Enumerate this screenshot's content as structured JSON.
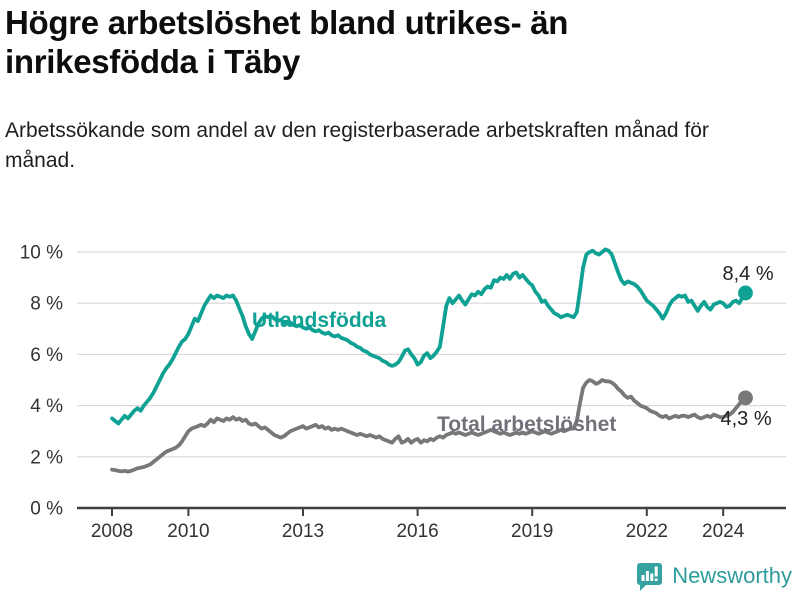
{
  "header": {
    "title": "Högre arbetslöshet bland utrikes- än inrikesfödda i Täby",
    "subtitle": "Arbetssökande som andel av den registerbaserade arbetskraften månad för månad."
  },
  "footer": {
    "brand": "Newsworthy",
    "brand_color": "#2f9c9c",
    "logo_icon": "bar-chart-speech-bubble-icon",
    "logo_color": "#35a1a1"
  },
  "chart_data": {
    "type": "line",
    "title": "Högre arbetslöshet bland utrikes- än inrikesfödda i Täby",
    "subtitle": "Arbetssökande som andel av den registerbaserade arbetskraften månad för månad.",
    "x_start_year": 2008,
    "x_interval": "monthly",
    "x_end": "2024-08",
    "x_tick_years": [
      2008,
      2010,
      2013,
      2016,
      2019,
      2022,
      2024
    ],
    "y_ticks": [
      0,
      2,
      4,
      6,
      8,
      10
    ],
    "y_tick_suffix": " %",
    "ylim": [
      0,
      10.5
    ],
    "grid": "horizontal",
    "legend_position": "inline-labels",
    "axis_color": "#3f3f3f",
    "grid_color": "#d9d9d9",
    "tick_label_color": "#333333",
    "end_label_color": "#222222",
    "series": [
      {
        "name": "Utlandsfödda",
        "color": "#0fa294",
        "label_color": "#0fa294",
        "end_label": "8,4 %",
        "end_value": 8.4,
        "values": [
          3.5,
          3.4,
          3.3,
          3.45,
          3.6,
          3.5,
          3.65,
          3.8,
          3.9,
          3.8,
          4.0,
          4.15,
          4.3,
          4.5,
          4.75,
          5.0,
          5.25,
          5.45,
          5.6,
          5.8,
          6.05,
          6.3,
          6.5,
          6.6,
          6.8,
          7.1,
          7.4,
          7.3,
          7.6,
          7.9,
          8.1,
          8.3,
          8.2,
          8.3,
          8.25,
          8.2,
          8.3,
          8.25,
          8.3,
          8.1,
          7.8,
          7.5,
          7.1,
          6.8,
          6.6,
          6.9,
          7.2,
          7.4,
          7.5,
          7.45,
          7.5,
          7.4,
          7.3,
          7.35,
          7.25,
          7.2,
          7.25,
          7.15,
          7.1,
          7.15,
          7.05,
          7.0,
          7.05,
          6.95,
          6.9,
          6.95,
          6.85,
          6.8,
          6.85,
          6.75,
          6.7,
          6.75,
          6.65,
          6.6,
          6.55,
          6.45,
          6.4,
          6.3,
          6.25,
          6.15,
          6.1,
          6.0,
          5.95,
          5.9,
          5.85,
          5.75,
          5.7,
          5.6,
          5.55,
          5.6,
          5.7,
          5.9,
          6.15,
          6.2,
          6.0,
          5.85,
          5.6,
          5.7,
          5.95,
          6.05,
          5.85,
          5.95,
          6.1,
          6.3,
          7.1,
          7.9,
          8.2,
          8.0,
          8.15,
          8.3,
          8.1,
          7.95,
          8.15,
          8.35,
          8.3,
          8.45,
          8.35,
          8.55,
          8.65,
          8.6,
          8.9,
          8.85,
          9.0,
          8.95,
          9.1,
          8.95,
          9.15,
          9.2,
          9.0,
          9.1,
          8.95,
          8.8,
          8.7,
          8.45,
          8.3,
          8.05,
          8.1,
          7.9,
          7.75,
          7.6,
          7.55,
          7.45,
          7.5,
          7.55,
          7.5,
          7.45,
          7.65,
          8.5,
          9.4,
          9.9,
          10.0,
          10.05,
          9.95,
          9.9,
          10.0,
          10.1,
          10.05,
          9.9,
          9.55,
          9.2,
          8.9,
          8.75,
          8.85,
          8.8,
          8.75,
          8.65,
          8.5,
          8.3,
          8.1,
          8.0,
          7.9,
          7.75,
          7.6,
          7.4,
          7.6,
          7.9,
          8.1,
          8.2,
          8.3,
          8.25,
          8.3,
          8.05,
          8.1,
          7.9,
          7.7,
          7.9,
          8.05,
          7.85,
          7.75,
          7.95,
          8.0,
          8.05,
          8.0,
          7.85,
          7.9,
          8.05,
          8.1,
          8.0,
          8.2,
          8.4
        ]
      },
      {
        "name": "Total arbetslöshet",
        "color": "#787878",
        "label_color": "#71717a",
        "end_label": "4,3 %",
        "end_value": 4.3,
        "values": [
          1.5,
          1.48,
          1.45,
          1.43,
          1.45,
          1.42,
          1.45,
          1.5,
          1.55,
          1.58,
          1.6,
          1.65,
          1.7,
          1.8,
          1.9,
          2.0,
          2.1,
          2.2,
          2.25,
          2.3,
          2.35,
          2.45,
          2.6,
          2.8,
          3.0,
          3.1,
          3.15,
          3.2,
          3.25,
          3.2,
          3.3,
          3.45,
          3.35,
          3.5,
          3.45,
          3.4,
          3.5,
          3.45,
          3.55,
          3.45,
          3.5,
          3.4,
          3.45,
          3.3,
          3.25,
          3.3,
          3.2,
          3.1,
          3.15,
          3.05,
          2.95,
          2.85,
          2.8,
          2.75,
          2.8,
          2.9,
          3.0,
          3.05,
          3.1,
          3.15,
          3.2,
          3.1,
          3.15,
          3.2,
          3.25,
          3.15,
          3.2,
          3.1,
          3.15,
          3.05,
          3.1,
          3.05,
          3.1,
          3.05,
          3.0,
          2.95,
          2.9,
          2.85,
          2.9,
          2.85,
          2.8,
          2.85,
          2.8,
          2.75,
          2.8,
          2.7,
          2.65,
          2.6,
          2.55,
          2.7,
          2.8,
          2.55,
          2.6,
          2.7,
          2.55,
          2.65,
          2.7,
          2.55,
          2.65,
          2.6,
          2.7,
          2.65,
          2.75,
          2.8,
          2.75,
          2.85,
          2.9,
          2.95,
          2.9,
          2.95,
          2.9,
          2.85,
          2.9,
          2.95,
          2.9,
          2.85,
          2.9,
          2.95,
          3.0,
          3.05,
          3.0,
          2.95,
          2.9,
          2.95,
          2.9,
          2.85,
          2.9,
          2.95,
          2.9,
          2.95,
          2.9,
          2.95,
          3.0,
          2.95,
          2.9,
          2.95,
          3.0,
          2.95,
          2.9,
          2.95,
          3.0,
          3.05,
          3.0,
          3.05,
          3.1,
          3.1,
          3.4,
          4.1,
          4.7,
          4.9,
          5.0,
          4.95,
          4.85,
          4.9,
          5.0,
          4.95,
          4.95,
          4.9,
          4.8,
          4.65,
          4.55,
          4.4,
          4.3,
          4.35,
          4.2,
          4.1,
          4.0,
          3.95,
          3.9,
          3.8,
          3.75,
          3.7,
          3.6,
          3.55,
          3.6,
          3.5,
          3.55,
          3.6,
          3.55,
          3.6,
          3.6,
          3.55,
          3.6,
          3.65,
          3.55,
          3.5,
          3.55,
          3.6,
          3.55,
          3.65,
          3.6,
          3.55,
          3.55,
          3.6,
          3.65,
          3.75,
          3.9,
          4.05,
          4.2,
          4.3
        ]
      }
    ]
  }
}
